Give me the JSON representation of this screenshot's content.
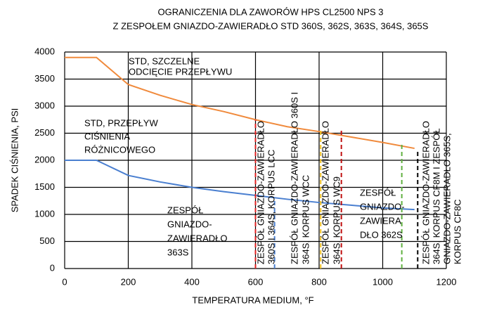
{
  "chart_data": {
    "type": "line",
    "title": "OGRANICZENIA DLA ZAWORÓW HPS CL2500 NPS 3",
    "subtitle": "Z ZESPOŁEM GNIAZDO-ZAWIERADŁO STD 360S, 362S, 363S, 364S, 365S",
    "xlabel": "TEMPERATURA MEDIUM, °F",
    "ylabel": "SPADEK CIŚNIENIA, PSI",
    "xlim": [
      0,
      1200
    ],
    "ylim": [
      0,
      4000
    ],
    "xticks": [
      0,
      200,
      400,
      600,
      800,
      1000,
      1200
    ],
    "yticks": [
      0,
      500,
      1000,
      1500,
      2000,
      2500,
      3000,
      3500,
      4000
    ],
    "grid": true,
    "x": [
      0,
      100,
      200,
      300,
      400,
      500,
      600,
      700,
      800,
      900,
      1000,
      1100
    ],
    "series": [
      {
        "name": "STD, SZCZELNE ODCIĘCIE PRZEPŁYWU",
        "color": "#f08a3c",
        "values": [
          3900,
          3900,
          3400,
          3200,
          3030,
          2900,
          2750,
          2620,
          2530,
          2430,
          2330,
          2220
        ]
      },
      {
        "name": "STD, PRZEPŁYW CIŚNIENIA RÓŻNICOWEGO",
        "color": "#4a7fd0",
        "values": [
          2000,
          2000,
          1720,
          1600,
          1500,
          1420,
          1350,
          1280,
          1220,
          1170,
          1120,
          1090
        ]
      }
    ],
    "markers": [
      {
        "x": 600,
        "y": 2750,
        "color": "#e02020"
      },
      {
        "x": 660,
        "y": 1300,
        "color": "#4a7fd0"
      },
      {
        "x": 805,
        "y": 2550,
        "color": "#f0c020"
      },
      {
        "x": 870,
        "y": 2550,
        "color": "#c01010"
      },
      {
        "x": 1060,
        "y": 2300,
        "color": "#60b040"
      },
      {
        "x": 1110,
        "y": 2200,
        "color": "#000000"
      }
    ],
    "annotations": [
      {
        "lines": [
          "STD, SZCZELNE",
          "ODCIĘCIE PRZEPŁYWU"
        ]
      },
      {
        "lines": [
          "STD, PRZEPŁYW",
          "CIŚNIENIA",
          "RÓŻNICOWEGO"
        ]
      },
      {
        "lines": [
          "ZESPÓŁ",
          "GNIAZDO-",
          "ZAWIERADŁO",
          "363S"
        ]
      },
      {
        "lines": [
          "ZESPÓŁ",
          "GNIAZDO-",
          "ZAWIERA",
          "DŁO 362S"
        ]
      },
      {
        "lines": [
          "ZESPÓŁ GNIAZDO-ZAWIERADŁO",
          "360S I 364S, KORPUS LCC"
        ]
      },
      {
        "lines": [
          "ZESPÓŁ GNIAZDO-ZAWIERADŁO 360S I",
          "364S, KORPUS WCC"
        ]
      },
      {
        "lines": [
          "ZESPÓŁ GNIAZDO-ZAWIERADŁO",
          "364S, KORPUS WC9"
        ]
      },
      {
        "lines": [
          "ZESPÓŁ GNIAZDO-ZAWIERADŁO",
          "364S, KORPUS CF8M I ZESPÓŁ",
          "GNIAZDO-ZAWIERADŁO 365S,",
          "KORPUS CF8C"
        ]
      }
    ]
  }
}
